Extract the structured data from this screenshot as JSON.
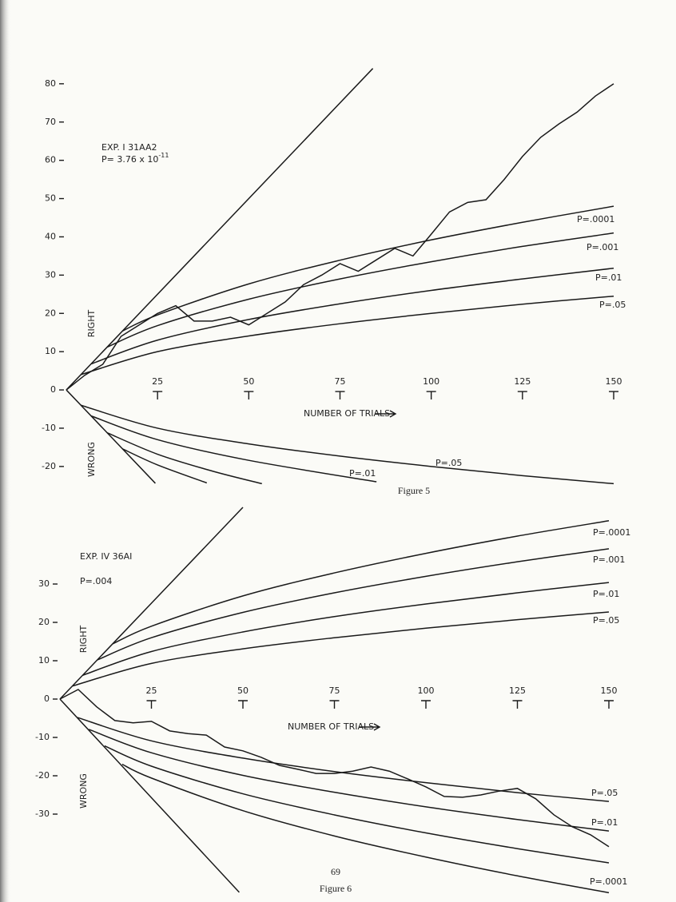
{
  "chart_data": [
    {
      "type": "line",
      "experiment": "EXP. I 31AA2",
      "p_value": {
        "base": "P= 3.76 x 10",
        "exponent": "-11"
      },
      "caption": "Figure 5",
      "xlabel": "NUMBER OF TRIALS",
      "right_label": "RIGHT",
      "wrong_label": "WRONG",
      "xlim": [
        0,
        150
      ],
      "xticks": [
        25,
        50,
        75,
        100,
        125,
        150
      ],
      "ylim": [
        -25,
        85
      ],
      "yticks": [
        80,
        70,
        60,
        50,
        40,
        30,
        20,
        10,
        0,
        -10,
        -20
      ],
      "color": "#1a1a1a",
      "series": [
        {
          "x": [
            0,
            5,
            10,
            15,
            20,
            25,
            30,
            35,
            40,
            45,
            50,
            55,
            60,
            65,
            70,
            75,
            80,
            85,
            90,
            95,
            100,
            105,
            110,
            115,
            120,
            125,
            130,
            135,
            140,
            145,
            150
          ],
          "values": [
            0,
            3.8,
            6.7,
            14,
            17,
            20,
            22,
            18,
            18,
            19,
            17,
            20,
            23,
            27.5,
            30,
            33,
            31,
            34,
            37,
            35,
            40.7,
            46.5,
            49,
            49.7,
            55,
            61,
            66,
            69.5,
            72.6,
            76.8,
            80
          ]
        },
        {
          "x": [
            0,
            84
          ],
          "values": [
            0,
            84
          ]
        },
        {
          "name": "P=.0001",
          "x": [
            15.4,
            25,
            50,
            75,
            100,
            125,
            150
          ],
          "values": [
            15.4,
            19.6,
            27.7,
            33.9,
            39.2,
            43.8,
            48
          ]
        },
        {
          "name": "P=.001",
          "x": [
            11.2,
            25,
            50,
            75,
            100,
            125,
            150
          ],
          "values": [
            11.2,
            16.8,
            23.7,
            29,
            33.5,
            37.5,
            41
          ]
        },
        {
          "name": "P=.01",
          "x": [
            6.8,
            25,
            50,
            75,
            100,
            125,
            150
          ],
          "values": [
            6.8,
            13,
            18.4,
            22.5,
            26,
            29,
            31.8
          ]
        },
        {
          "name": "P=.05",
          "x": [
            4,
            25,
            50,
            75,
            100,
            125,
            150
          ],
          "values": [
            4,
            10,
            14.1,
            17.3,
            20,
            22.4,
            24.5
          ]
        },
        {
          "x": [
            0,
            24.4
          ],
          "values": [
            0,
            -24.4
          ]
        },
        {
          "x": [
            15.4,
            25,
            38.5
          ],
          "values": [
            -15.4,
            -19.6,
            -24.3
          ]
        },
        {
          "x": [
            11.2,
            25,
            40,
            53.6
          ],
          "values": [
            -11.2,
            -16.8,
            -21.2,
            -24.5
          ]
        },
        {
          "name": "P=.01",
          "x": [
            6.8,
            25,
            50,
            85
          ],
          "values": [
            -6.8,
            -13,
            -18.4,
            -24
          ]
        },
        {
          "name": "P=.05",
          "x": [
            4,
            25,
            50,
            75,
            100,
            125,
            150
          ],
          "values": [
            -4,
            -10,
            -14.1,
            -17.3,
            -20,
            -22.4,
            -24.5
          ]
        }
      ]
    },
    {
      "type": "line",
      "experiment": "EXP. IV 36AI",
      "p_value": {
        "base": "P=.004"
      },
      "caption": "Figure 6",
      "xlabel": "NUMBER OF TRIALS",
      "right_label": "RIGHT",
      "wrong_label": "WRONG",
      "xlim": [
        0,
        150
      ],
      "xticks": [
        25,
        50,
        75,
        100,
        125,
        150
      ],
      "ylim": [
        -50,
        50
      ],
      "yticks": [
        30,
        20,
        10,
        0,
        -10,
        -20,
        -30
      ],
      "color": "#1a1a1a",
      "series": [
        {
          "x": [
            0,
            5,
            10,
            15,
            20,
            25,
            30,
            35,
            40,
            45,
            50,
            55,
            60,
            65,
            70,
            75,
            80,
            85,
            90,
            95,
            100,
            105,
            110,
            115,
            120,
            125,
            130,
            135,
            140,
            145,
            150
          ],
          "values": [
            0,
            2.5,
            -2,
            -5.6,
            -6.2,
            -5.8,
            -8.3,
            -9,
            -9.4,
            -12.5,
            -13.5,
            -15.2,
            -17.3,
            -18.3,
            -19.4,
            -19.4,
            -18.8,
            -17.7,
            -18.8,
            -20.8,
            -22.9,
            -25.4,
            -25.6,
            -25,
            -24,
            -23.3,
            -26,
            -30.2,
            -33.3,
            -35.4,
            -38.5
          ]
        },
        {
          "x": [
            0,
            50
          ],
          "values": [
            0,
            50
          ]
        },
        {
          "name": "P=.0001",
          "x": [
            14.4,
            25,
            50,
            75,
            100,
            125,
            150
          ],
          "values": [
            14.4,
            19,
            26.9,
            32.9,
            38,
            42.5,
            46.5
          ]
        },
        {
          "name": "P=.001",
          "x": [
            10.2,
            25,
            50,
            75,
            100,
            125,
            150
          ],
          "values": [
            10.2,
            16,
            22.6,
            27.7,
            32,
            35.8,
            39.2
          ]
        },
        {
          "name": "P=.01",
          "x": [
            6.2,
            25,
            50,
            75,
            100,
            125,
            150
          ],
          "values": [
            6.2,
            12.4,
            17.5,
            21.5,
            24.8,
            27.7,
            30.4
          ]
        },
        {
          "name": "P=.05",
          "x": [
            3.4,
            25,
            50,
            75,
            100,
            125,
            150
          ],
          "values": [
            3.4,
            9.3,
            13.1,
            16,
            18.5,
            20.7,
            22.7
          ]
        },
        {
          "x": [
            0,
            49
          ],
          "values": [
            0,
            -50.4
          ]
        },
        {
          "name": "P=.05",
          "x": [
            4.8,
            25,
            50,
            75,
            100,
            125,
            150
          ],
          "values": [
            -4.8,
            -10.9,
            -15.4,
            -18.9,
            -21.8,
            -24.4,
            -26.7
          ]
        },
        {
          "name": "P=.01",
          "x": [
            7.9,
            25,
            50,
            75,
            100,
            125,
            150
          ],
          "values": [
            -7.9,
            -14,
            -19.9,
            -24.3,
            -28.1,
            -31.4,
            -34.4
          ]
        },
        {
          "x": [
            12.2,
            25,
            50,
            75,
            100,
            125,
            150
          ],
          "values": [
            -12.2,
            -17.5,
            -24.7,
            -30.2,
            -34.9,
            -39,
            -42.7
          ]
        },
        {
          "name": "P=.0001",
          "x": [
            17,
            25,
            50,
            75,
            100,
            125,
            150
          ],
          "values": [
            -17,
            -20.6,
            -29.1,
            -35.7,
            -41.2,
            -46.1,
            -50.5
          ]
        }
      ]
    }
  ],
  "page_number": "69"
}
